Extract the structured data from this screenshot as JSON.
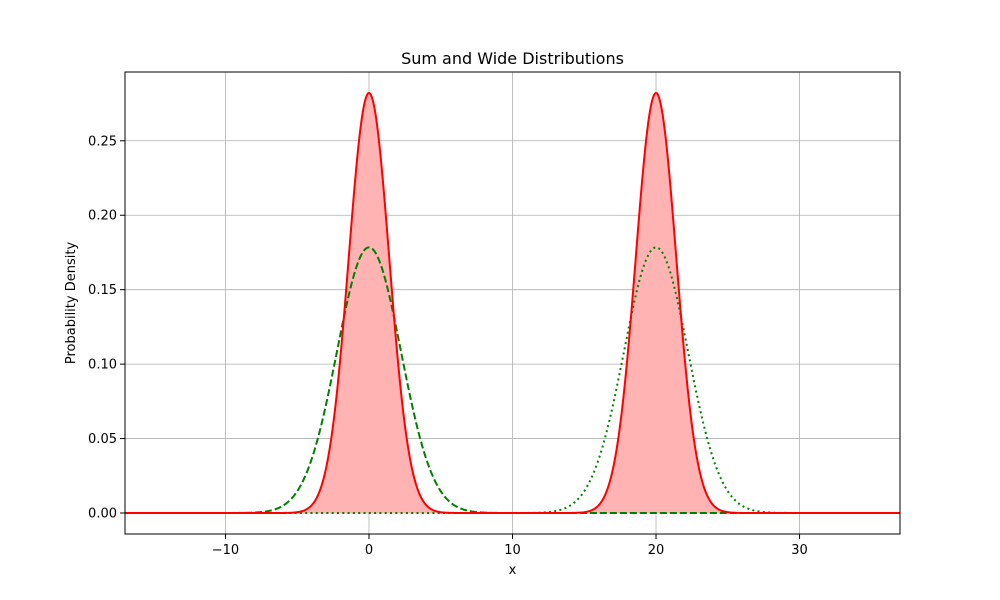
{
  "chart_data": {
    "type": "line",
    "title": "Sum and Wide Distributions",
    "xlabel": "x",
    "ylabel": "Probability Density",
    "xlim": [
      -17,
      37
    ],
    "ylim": [
      -0.0141,
      0.2962
    ],
    "grid": true,
    "legend": "none",
    "x_ticks": [
      {
        "value": -10,
        "label": "−10"
      },
      {
        "value": 0,
        "label": "0"
      },
      {
        "value": 10,
        "label": "10"
      },
      {
        "value": 20,
        "label": "20"
      },
      {
        "value": 30,
        "label": "30"
      }
    ],
    "y_ticks": [
      {
        "value": 0.0,
        "label": "0.00"
      },
      {
        "value": 0.05,
        "label": "0.05"
      },
      {
        "value": 0.1,
        "label": "0.10"
      },
      {
        "value": 0.15,
        "label": "0.15"
      },
      {
        "value": 0.2,
        "label": "0.20"
      },
      {
        "value": 0.25,
        "label": "0.25"
      }
    ],
    "series": [
      {
        "style": "dashed",
        "color": "#008000",
        "fill": null,
        "components": [
          {
            "mean": 0,
            "sd": 2.236,
            "weight": 1
          }
        ]
      },
      {
        "style": "dotted",
        "color": "#008000",
        "fill": null,
        "components": [
          {
            "mean": 20,
            "sd": 2.236,
            "weight": 1
          }
        ]
      },
      {
        "style": "solid",
        "color": "#ff0000",
        "fill": "#ffb3b3",
        "components": [
          {
            "mean": 0,
            "sd": 1.414,
            "weight": 1
          },
          {
            "mean": 20,
            "sd": 1.414,
            "weight": 1
          }
        ]
      }
    ]
  },
  "colors": {
    "grid": "#b0b0b0",
    "axes": "#000000",
    "background": "#ffffff"
  }
}
